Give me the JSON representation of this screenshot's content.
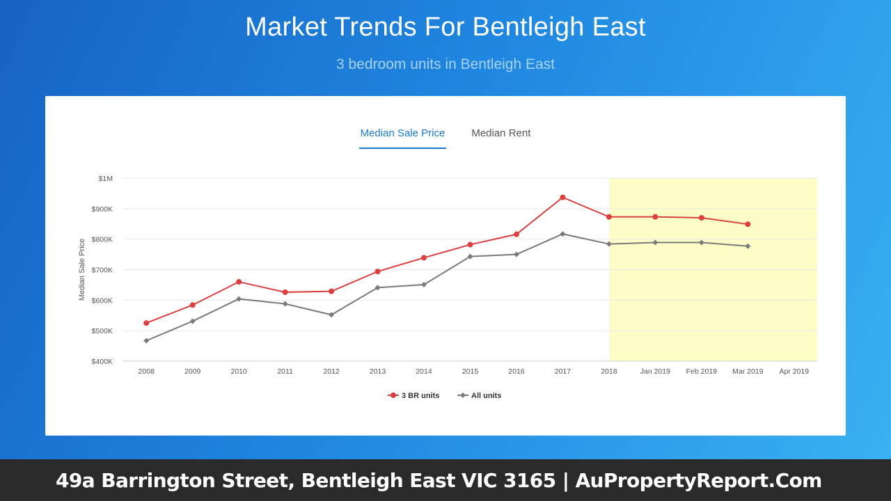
{
  "header": {
    "title": "Market Trends For Bentleigh East",
    "subtitle": "3 bedroom units in Bentleigh East"
  },
  "tabs": [
    {
      "label": "Median Sale Price",
      "active": true
    },
    {
      "label": "Median Rent",
      "active": false
    }
  ],
  "chart_data": {
    "type": "line",
    "ylabel": "Median Sale Price",
    "ylim": [
      400000,
      1000000
    ],
    "yticks": [
      {
        "value": 1000000,
        "label": "$1M"
      },
      {
        "value": 900000,
        "label": "$900K"
      },
      {
        "value": 800000,
        "label": "$800K"
      },
      {
        "value": 700000,
        "label": "$700K"
      },
      {
        "value": 600000,
        "label": "$600K"
      },
      {
        "value": 500000,
        "label": "$500K"
      },
      {
        "value": 400000,
        "label": "$400K"
      }
    ],
    "categories": [
      "2008",
      "2009",
      "2010",
      "2011",
      "2012",
      "2013",
      "2014",
      "2015",
      "2016",
      "2017",
      "2018",
      "Jan 2019",
      "Feb 2019",
      "Mar 2019",
      "Apr 2019"
    ],
    "highlight_range": [
      "Jan 2019",
      "Apr 2019"
    ],
    "highlight_color": "#fdfdc8",
    "grid": true,
    "legend_position": "bottom",
    "series": [
      {
        "name": "3 BR units",
        "color": "#db3f3f",
        "marker": "circle",
        "values": [
          525000,
          584000,
          660000,
          626000,
          629000,
          694000,
          739000,
          782000,
          816000,
          937000,
          873000,
          873000,
          870000,
          849000,
          null
        ]
      },
      {
        "name": "All units",
        "color": "#7a7a7a",
        "marker": "diamond",
        "values": [
          467000,
          531000,
          604000,
          588000,
          552000,
          641000,
          651000,
          743000,
          750000,
          817000,
          784000,
          789000,
          789000,
          777000,
          null
        ]
      }
    ]
  },
  "footer": {
    "text": "49a Barrington Street, Bentleigh East VIC 3165 | AuPropertyReport.Com"
  }
}
